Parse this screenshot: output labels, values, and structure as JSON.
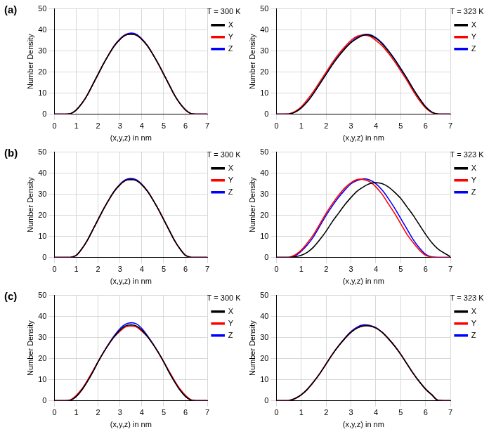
{
  "chart_data": [
    {
      "type": "line",
      "label": "(a)",
      "legend_title": "T = 300 K",
      "x_label": "(x,y,z) in nm",
      "y_label": "Number Density",
      "x": [
        0,
        0.5,
        0.75,
        1,
        1.25,
        1.5,
        1.75,
        2,
        2.25,
        2.5,
        2.75,
        3,
        3.25,
        3.5,
        3.75,
        4,
        4.25,
        4.5,
        4.75,
        5,
        5.25,
        5.5,
        5.75,
        6,
        6.25,
        6.5,
        7
      ],
      "series": [
        {
          "name": "X",
          "color": "#000000",
          "values": [
            0,
            0,
            0.3,
            2,
            5,
            9,
            14,
            19,
            24,
            28.5,
            32.5,
            35.5,
            37.5,
            38,
            37.5,
            35.5,
            32.5,
            28.5,
            24,
            19,
            14,
            9,
            5,
            2,
            0.3,
            0,
            0
          ]
        },
        {
          "name": "Y",
          "color": "#ff0000",
          "values": [
            0,
            0,
            0.3,
            2,
            5,
            9,
            14,
            19,
            24,
            28.5,
            32.5,
            35.5,
            37.5,
            38,
            37.5,
            35.5,
            32.5,
            28.5,
            24,
            19,
            14,
            9,
            5,
            2,
            0.3,
            0,
            0
          ]
        },
        {
          "name": "Z",
          "color": "#0000ff",
          "values": [
            0,
            0,
            0.3,
            2,
            5,
            9,
            14,
            19,
            24,
            28.5,
            32.7,
            35.8,
            37.8,
            38.5,
            38,
            35.8,
            32.7,
            28.5,
            24,
            19,
            14,
            9,
            5,
            2,
            0.3,
            0,
            0
          ]
        }
      ],
      "xlim": [
        0,
        7
      ],
      "xticks": [
        0,
        1,
        2,
        3,
        4,
        5,
        6,
        7
      ],
      "ylim": [
        0,
        50
      ],
      "yticks": [
        0,
        10,
        20,
        30,
        40,
        50
      ],
      "grid": true,
      "legend": "right"
    },
    {
      "type": "line",
      "legend_title": "T = 323 K",
      "x_label": "(x,y,z) in nm",
      "y_label": "Number Density",
      "x": [
        0,
        0.5,
        0.75,
        1,
        1.25,
        1.5,
        1.75,
        2,
        2.25,
        2.5,
        2.75,
        3,
        3.25,
        3.5,
        3.75,
        4,
        4.25,
        4.5,
        4.75,
        5,
        5.25,
        5.5,
        5.75,
        6,
        6.25,
        6.5,
        7
      ],
      "series": [
        {
          "name": "X",
          "color": "#000000",
          "values": [
            0,
            0.1,
            1,
            3,
            6,
            10,
            14.5,
            19,
            23.5,
            27.5,
            31,
            34,
            36,
            37.5,
            37.5,
            36,
            33.5,
            30,
            26,
            21.5,
            17,
            12,
            7.5,
            3.5,
            1,
            0.1,
            0
          ]
        },
        {
          "name": "Y",
          "color": "#ff0000",
          "values": [
            0,
            0.2,
            1.3,
            3.5,
            7,
            11,
            15.5,
            20,
            24.5,
            28.5,
            32,
            35,
            37,
            37.5,
            37,
            35,
            32.5,
            29,
            25,
            20.5,
            16,
            11,
            6.5,
            3,
            0.8,
            0.1,
            0
          ]
        },
        {
          "name": "Z",
          "color": "#0000ff",
          "values": [
            0,
            0.1,
            1,
            3,
            6,
            10,
            14.5,
            19,
            23.5,
            27.5,
            31.2,
            34.2,
            36.5,
            37.8,
            37.8,
            36.3,
            33.8,
            30.2,
            26.2,
            21.7,
            17,
            12,
            7.5,
            3.5,
            1,
            0.1,
            0
          ]
        }
      ],
      "xlim": [
        0,
        7
      ],
      "xticks": [
        0,
        1,
        2,
        3,
        4,
        5,
        6,
        7
      ],
      "ylim": [
        0,
        50
      ],
      "yticks": [
        0,
        10,
        20,
        30,
        40,
        50
      ],
      "grid": true,
      "legend": "right"
    },
    {
      "type": "line",
      "label": "(b)",
      "legend_title": "T = 300 K",
      "x_label": "(x,y,z) in nm",
      "y_label": "Number Density",
      "x": [
        0,
        0.5,
        0.75,
        1,
        1.25,
        1.5,
        1.75,
        2,
        2.25,
        2.5,
        2.75,
        3,
        3.25,
        3.5,
        3.75,
        4,
        4.25,
        4.5,
        4.75,
        5,
        5.25,
        5.5,
        5.75,
        6,
        6.25,
        6.5,
        7
      ],
      "series": [
        {
          "name": "X",
          "color": "#000000",
          "values": [
            0,
            0,
            0.1,
            1,
            4,
            8,
            13,
            18,
            23,
            27.5,
            31.5,
            34.5,
            36.5,
            37,
            36.5,
            34.5,
            31.5,
            27.5,
            23,
            18,
            13,
            8,
            4,
            1,
            0.1,
            0,
            0
          ]
        },
        {
          "name": "Y",
          "color": "#ff0000",
          "values": [
            0,
            0,
            0.1,
            1,
            4,
            8,
            13,
            18,
            23,
            27.5,
            31.5,
            34.5,
            36.5,
            37,
            36.5,
            34.5,
            31.5,
            27.5,
            23,
            18,
            13,
            8,
            4,
            1,
            0.1,
            0,
            0
          ]
        },
        {
          "name": "Z",
          "color": "#0000ff",
          "values": [
            0,
            0,
            0.1,
            1,
            4,
            8,
            13,
            18,
            23,
            27.5,
            31.7,
            34.8,
            36.9,
            37.5,
            36.9,
            34.8,
            31.7,
            27.5,
            23,
            18,
            13,
            8,
            4,
            1,
            0.1,
            0,
            0
          ]
        }
      ],
      "xlim": [
        0,
        7
      ],
      "xticks": [
        0,
        1,
        2,
        3,
        4,
        5,
        6,
        7
      ],
      "ylim": [
        0,
        50
      ],
      "yticks": [
        0,
        10,
        20,
        30,
        40,
        50
      ],
      "grid": true,
      "legend": "right"
    },
    {
      "type": "line",
      "legend_title": "T = 323 K",
      "x_label": "(x,y,z) in nm",
      "y_label": "Number Density",
      "x": [
        0,
        0.5,
        0.75,
        1,
        1.25,
        1.5,
        1.75,
        2,
        2.25,
        2.5,
        2.75,
        3,
        3.25,
        3.5,
        3.75,
        4,
        4.25,
        4.5,
        4.75,
        5,
        5.25,
        5.5,
        5.75,
        6,
        6.25,
        6.5,
        7
      ],
      "series": [
        {
          "name": "X",
          "color": "#000000",
          "values": [
            0,
            0,
            0.3,
            1,
            2.5,
            5,
            8.5,
            12.5,
            17,
            21,
            25,
            28.5,
            31.5,
            33.5,
            35,
            35.5,
            35,
            33.5,
            31,
            28,
            24,
            20,
            15.5,
            11,
            7,
            4,
            0.3
          ]
        },
        {
          "name": "Y",
          "color": "#ff0000",
          "values": [
            0,
            0.1,
            1.2,
            3.5,
            7,
            11,
            16,
            21,
            25.5,
            29.5,
            33,
            35.5,
            37,
            37,
            36,
            33.5,
            30,
            25.5,
            21,
            16,
            11,
            7,
            3.5,
            1,
            0.2,
            0,
            0
          ]
        },
        {
          "name": "Z",
          "color": "#0000ff",
          "values": [
            0,
            0,
            0.8,
            3,
            6,
            10,
            15,
            20,
            24.5,
            28.5,
            32,
            35,
            36.5,
            37.3,
            36.8,
            35,
            32,
            28,
            23.5,
            18.5,
            13.5,
            8.5,
            4.5,
            1.5,
            0.3,
            0,
            0
          ]
        }
      ],
      "xlim": [
        0,
        7
      ],
      "xticks": [
        0,
        1,
        2,
        3,
        4,
        5,
        6,
        7
      ],
      "ylim": [
        0,
        50
      ],
      "yticks": [
        0,
        10,
        20,
        30,
        40,
        50
      ],
      "grid": true,
      "legend": "right"
    },
    {
      "type": "line",
      "label": "(c)",
      "legend_title": "T = 300 K",
      "x_label": "(x,y,z) in nm",
      "y_label": "Number Density",
      "x": [
        0,
        0.5,
        0.75,
        1,
        1.25,
        1.5,
        1.75,
        2,
        2.25,
        2.5,
        2.75,
        3,
        3.25,
        3.5,
        3.75,
        4,
        4.25,
        4.5,
        4.75,
        5,
        5.25,
        5.5,
        5.75,
        6,
        6.25,
        6.5,
        7
      ],
      "series": [
        {
          "name": "X",
          "color": "#000000",
          "values": [
            0,
            0,
            0.3,
            2,
            5,
            9,
            13.5,
            18.5,
            23,
            27,
            30.5,
            33.5,
            35.5,
            36,
            35.5,
            33.5,
            30.5,
            27,
            23,
            18.5,
            13.5,
            9,
            5,
            2,
            0.3,
            0,
            0
          ]
        },
        {
          "name": "Y",
          "color": "#ff0000",
          "values": [
            0,
            0,
            0.5,
            2.5,
            5.5,
            9.5,
            14,
            18.5,
            23,
            27,
            30.5,
            33,
            35,
            35.5,
            35,
            33,
            30.5,
            27,
            23,
            18.5,
            14,
            9.5,
            5.5,
            2.5,
            0.5,
            0,
            0
          ]
        },
        {
          "name": "Z",
          "color": "#0000ff",
          "values": [
            0,
            0,
            0.3,
            2,
            5,
            9,
            13.5,
            18.5,
            23,
            27.2,
            31,
            34.2,
            36.3,
            37,
            36.5,
            34.3,
            31,
            27.2,
            23,
            18.5,
            13.5,
            9,
            5,
            2,
            0.3,
            0,
            0
          ]
        }
      ],
      "xlim": [
        0,
        7
      ],
      "xticks": [
        0,
        1,
        2,
        3,
        4,
        5,
        6,
        7
      ],
      "ylim": [
        0,
        50
      ],
      "yticks": [
        0,
        10,
        20,
        30,
        40,
        50
      ],
      "grid": true,
      "legend": "right"
    },
    {
      "type": "line",
      "legend_title": "T = 323 K",
      "x_label": "(x,y,z) in nm",
      "y_label": "Number Density",
      "x": [
        0,
        0.5,
        0.75,
        1,
        1.25,
        1.5,
        1.75,
        2,
        2.25,
        2.5,
        2.75,
        3,
        3.25,
        3.5,
        3.75,
        4,
        4.25,
        4.5,
        4.75,
        5,
        5.25,
        5.5,
        5.75,
        6,
        6.25,
        6.5,
        7
      ],
      "series": [
        {
          "name": "X",
          "color": "#000000",
          "values": [
            0,
            0.1,
            1,
            2.8,
            5.5,
            9,
            13,
            17.5,
            22,
            26,
            29.5,
            32.5,
            34.5,
            35.5,
            35.5,
            34.5,
            32.5,
            29.5,
            26,
            22,
            17.5,
            13,
            9,
            5.5,
            2.8,
            0.2,
            0
          ]
        },
        {
          "name": "Y",
          "color": "#ff0000",
          "values": [
            0,
            0.1,
            1,
            2.8,
            5.5,
            9,
            13,
            17.5,
            22,
            26,
            29.5,
            32.5,
            34.5,
            35.5,
            35.5,
            34.5,
            32.5,
            29.5,
            26,
            22,
            17.5,
            13,
            9,
            5.5,
            2.8,
            0.2,
            0
          ]
        },
        {
          "name": "Z",
          "color": "#0000ff",
          "values": [
            0,
            0.1,
            1,
            2.8,
            5.5,
            9,
            13,
            17.5,
            22,
            26,
            29.7,
            32.8,
            35,
            36,
            35.8,
            34.7,
            32.5,
            29.5,
            26,
            22,
            17.5,
            13,
            9,
            5.5,
            2.8,
            0.2,
            0
          ]
        }
      ],
      "xlim": [
        0,
        7
      ],
      "xticks": [
        0,
        1,
        2,
        3,
        4,
        5,
        6,
        7
      ],
      "ylim": [
        0,
        50
      ],
      "yticks": [
        0,
        10,
        20,
        30,
        40,
        50
      ],
      "grid": true,
      "legend": "right"
    }
  ]
}
